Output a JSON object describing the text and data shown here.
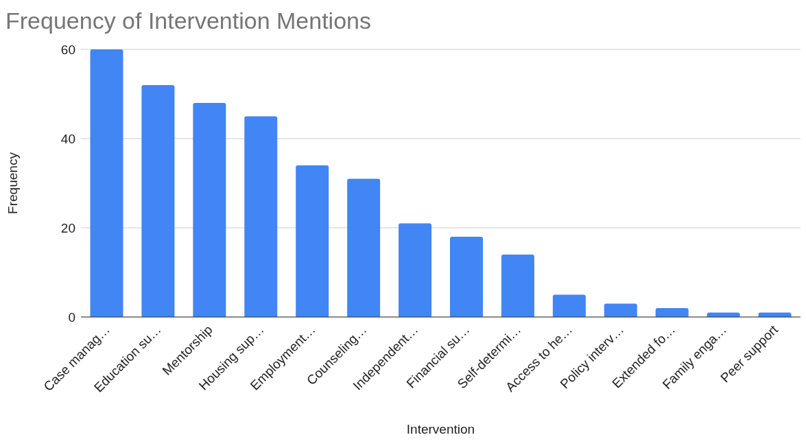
{
  "chart_data": {
    "type": "bar",
    "title": "Frequency of Intervention Mentions",
    "xlabel": "Intervention",
    "ylabel": "Frequency",
    "categories": [
      "Case manag…",
      "Education su…",
      "Mentorship",
      "Housing sup…",
      "Employment…",
      "Counseling…",
      "Independent…",
      "Financial su…",
      "Self-determi…",
      "Access to he…",
      "Policy interv…",
      "Extended fo…",
      "Family enga…",
      "Peer support"
    ],
    "values": [
      60,
      52,
      48,
      45,
      34,
      31,
      21,
      18,
      14,
      5,
      3,
      2,
      1,
      1
    ],
    "color": "#4285f4",
    "ylim": [
      0,
      60
    ],
    "yticks": [
      0,
      20,
      40,
      60
    ],
    "grid": "y"
  }
}
